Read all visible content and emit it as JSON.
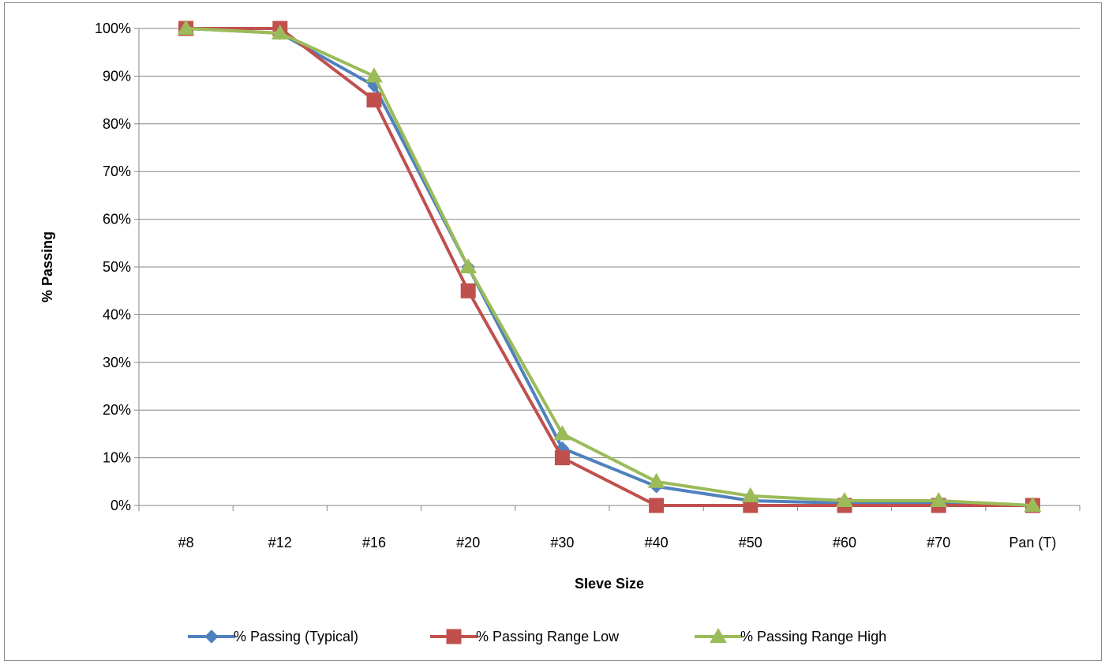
{
  "chart_data": {
    "type": "line",
    "title": "",
    "xlabel": "SIeve Size",
    "ylabel": "% Passing",
    "categories": [
      "#8",
      "#12",
      "#16",
      "#20",
      "#30",
      "#40",
      "#50",
      "#60",
      "#70",
      "Pan (T)"
    ],
    "yticks": [
      "0%",
      "10%",
      "20%",
      "30%",
      "40%",
      "50%",
      "60%",
      "70%",
      "80%",
      "90%",
      "100%"
    ],
    "ylim": [
      0,
      100
    ],
    "grid": true,
    "legend_position": "bottom",
    "series": [
      {
        "name": "% Passing (Typical)",
        "color": "#4f81bd",
        "marker": "diamond",
        "values": [
          100,
          99,
          88,
          50,
          12,
          4,
          1,
          0.5,
          0.5,
          0
        ]
      },
      {
        "name": "% Passing Range Low",
        "color": "#c0504d",
        "marker": "square",
        "values": [
          100,
          100,
          85,
          45,
          10,
          0,
          0,
          0,
          0,
          0
        ]
      },
      {
        "name": "% Passing Range High",
        "color": "#9bbb59",
        "marker": "triangle",
        "values": [
          100,
          99,
          90,
          50,
          15,
          5,
          2,
          1,
          1,
          0
        ]
      }
    ]
  }
}
